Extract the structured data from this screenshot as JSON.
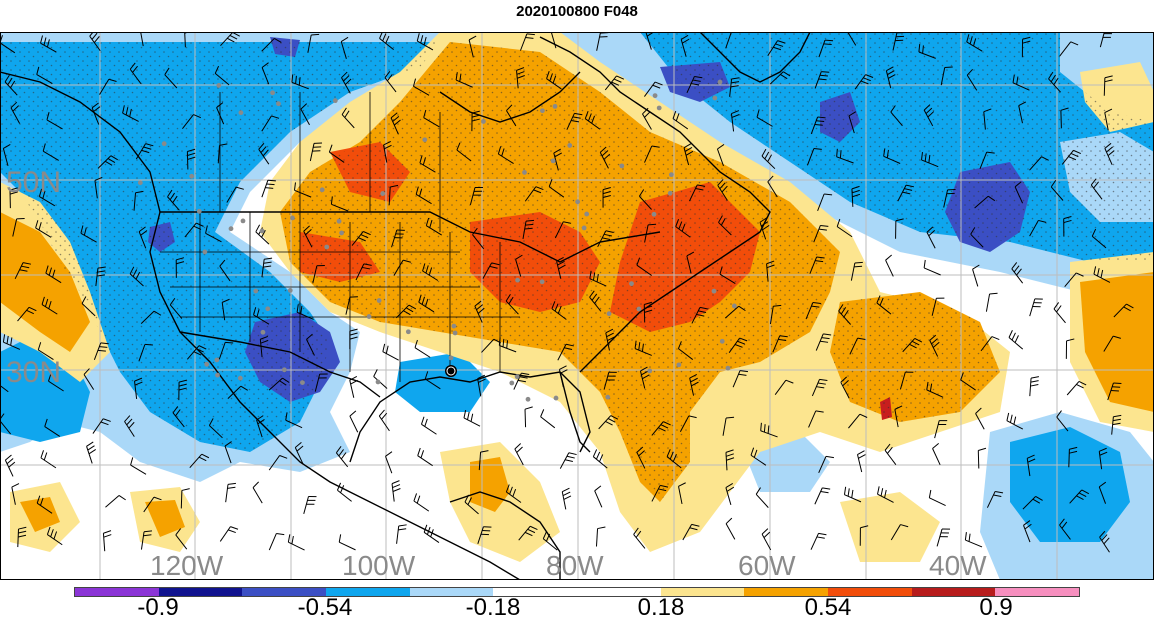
{
  "title": "2020100800 F048",
  "map": {
    "lat_labels": [
      "50N",
      "30N"
    ],
    "lon_labels": [
      "120W",
      "100W",
      "80W",
      "60W",
      "40W"
    ],
    "colors": {
      "deep_blue": "#3b4fc4",
      "blue": "#0fa6ee",
      "light_blue": "#aad8f8",
      "white": "#ffffff",
      "light_yellow": "#fce58f",
      "orange": "#f5a200",
      "red_orange": "#f24d0a",
      "dark_red": "#c81e1e"
    }
  },
  "colorbar": {
    "labels": [
      "-0.9",
      "-0.54",
      "-0.18",
      "0.18",
      "0.54",
      "0.9"
    ],
    "colors": [
      "#8b35d6",
      "#10138f",
      "#3b4fc4",
      "#0fa6ee",
      "#aad8f8",
      "#ffffff",
      "#ffffff",
      "#fce58f",
      "#f5a200",
      "#f24d0a",
      "#b71c1c",
      "#f78fbf"
    ]
  }
}
